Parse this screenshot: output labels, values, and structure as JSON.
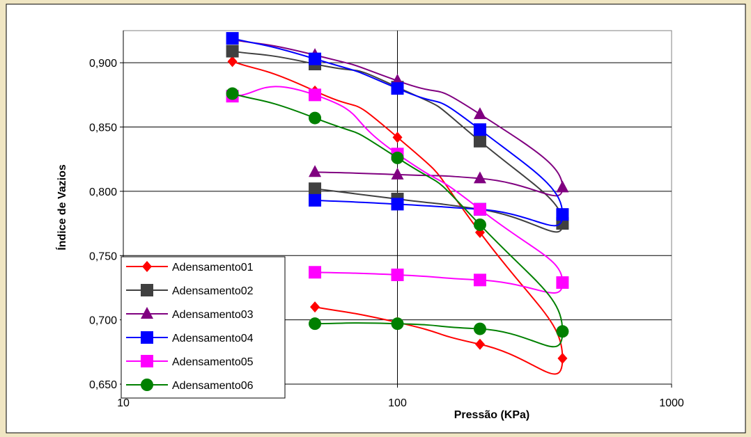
{
  "chart_data": {
    "type": "scatter",
    "title": "",
    "xlabel": "Pressão (KPa)",
    "ylabel": "Índice de Vazios",
    "xscale": "log",
    "xlim": [
      10,
      1000
    ],
    "ylim": [
      0.65,
      0.925
    ],
    "xticks": [
      10,
      100,
      1000
    ],
    "xtick_labels": [
      "10",
      "100",
      "1000"
    ],
    "yticks": [
      0.65,
      0.7,
      0.75,
      0.8,
      0.85,
      0.9
    ],
    "ytick_labels": [
      "0,650",
      "0,700",
      "0,750",
      "0,800",
      "0,850",
      "0,900"
    ],
    "grid": true,
    "legend_position": "bottom-left",
    "background": "#f0e6c3",
    "series": [
      {
        "name": "Adensamento01",
        "color": "#ff0000",
        "marker": "diamond",
        "x": [
          25,
          50,
          100,
          200,
          400,
          200,
          100,
          50
        ],
        "y": [
          0.901,
          0.878,
          0.842,
          0.768,
          0.67,
          0.681,
          0.698,
          0.71
        ]
      },
      {
        "name": "Adensamento02",
        "color": "#404040",
        "marker": "square",
        "x": [
          25,
          50,
          100,
          200,
          400,
          200,
          100,
          50
        ],
        "y": [
          0.909,
          0.899,
          0.881,
          0.839,
          0.775,
          0.786,
          0.794,
          0.802
        ]
      },
      {
        "name": "Adensamento03",
        "color": "#800080",
        "marker": "triangle",
        "x": [
          25,
          50,
          100,
          200,
          400,
          200,
          100,
          50
        ],
        "y": [
          0.918,
          0.906,
          0.886,
          0.86,
          0.803,
          0.81,
          0.813,
          0.815
        ]
      },
      {
        "name": "Adensamento04",
        "color": "#0000ff",
        "marker": "square",
        "x": [
          25,
          50,
          100,
          200,
          400,
          200,
          100,
          50
        ],
        "y": [
          0.919,
          0.903,
          0.88,
          0.848,
          0.782,
          0.786,
          0.79,
          0.793
        ]
      },
      {
        "name": "Adensamento05",
        "color": "#ff00ff",
        "marker": "square",
        "x": [
          25,
          50,
          100,
          200,
          400,
          200,
          100,
          50
        ],
        "y": [
          0.874,
          0.875,
          0.829,
          0.786,
          0.729,
          0.731,
          0.735,
          0.737
        ]
      },
      {
        "name": "Adensamento06",
        "color": "#008000",
        "marker": "circle",
        "x": [
          25,
          50,
          100,
          200,
          400,
          200,
          100,
          50
        ],
        "y": [
          0.876,
          0.857,
          0.826,
          0.774,
          0.691,
          0.693,
          0.697,
          0.697
        ]
      }
    ]
  }
}
